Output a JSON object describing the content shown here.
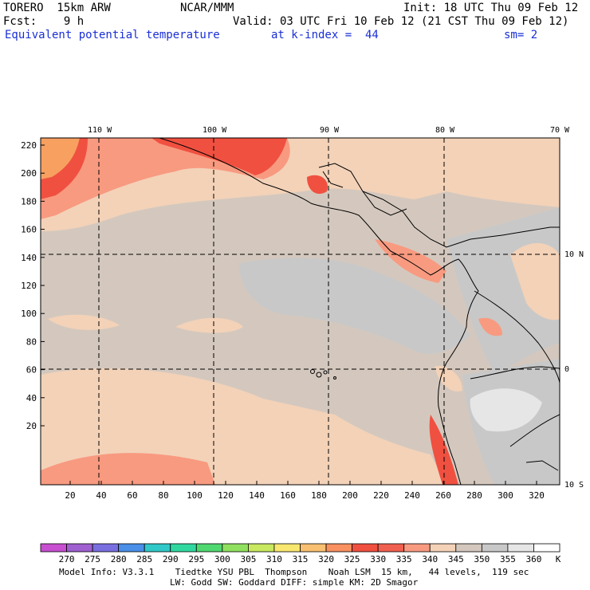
{
  "header": {
    "model": "TORERO  15km ARW",
    "center": "NCAR/MMM",
    "init": "Init: 18 UTC Thu 09 Feb 12",
    "fcst": "Fcst:    9 h",
    "valid": "Valid: 03 UTC Fri 10 Feb 12 (21 CST Thu 09 Feb 12)",
    "field": "Equivalent potential temperature",
    "level": "at k-index =  44",
    "smoothing": "sm= 2"
  },
  "map": {
    "longitude_labels": [
      "110 W",
      "100 W",
      "90 W",
      "80 W",
      "70 W"
    ],
    "latitude_labels": [
      "10 N",
      "0",
      "10 S"
    ],
    "y_ticks": [
      "220",
      "200",
      "180",
      "160",
      "140",
      "120",
      "100",
      "80",
      "60",
      "40",
      "20"
    ],
    "x_ticks": [
      "20",
      "40",
      "60",
      "80",
      "100",
      "120",
      "140",
      "160",
      "180",
      "200",
      "220",
      "240",
      "260",
      "280",
      "300",
      "320"
    ]
  },
  "colorbar": {
    "unit": "K",
    "labels": [
      "270",
      "275",
      "280",
      "285",
      "290",
      "295",
      "300",
      "305",
      "310",
      "315",
      "320",
      "325",
      "330",
      "335",
      "340",
      "345",
      "350",
      "355",
      "360"
    ],
    "colors": [
      "#c84fd0",
      "#a060d0",
      "#7a6fe0",
      "#4a8fe8",
      "#30c8c8",
      "#30d8a0",
      "#50d870",
      "#90e060",
      "#c8e860",
      "#f8e870",
      "#f8c070",
      "#f89060",
      "#f05040",
      "#f06050",
      "#f89a80",
      "#f3d2b8",
      "#d4c8be",
      "#c8c8c8",
      "#e6e6e6",
      "#ffffff"
    ]
  },
  "footer": {
    "line1": "Model Info: V3.3.1    Tiedtke YSU PBL  Thompson    Noah LSM  15 km,   44 levels,  119 sec",
    "line2": "LW: Godd SW: Goddard DIFF: simple KM: 2D Smagor"
  }
}
